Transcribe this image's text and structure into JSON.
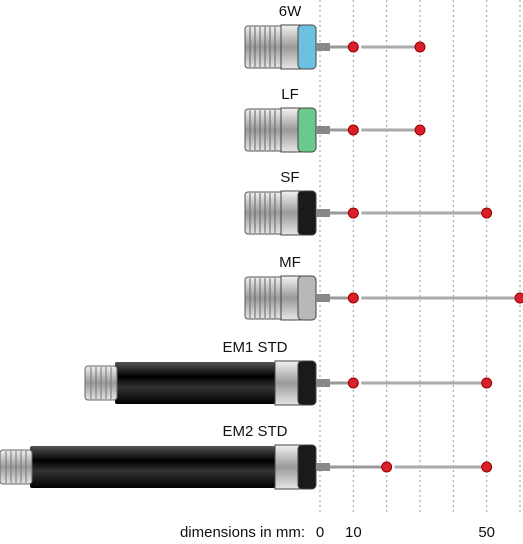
{
  "axis": {
    "label": "dimensions in mm:",
    "lim": [
      0,
      60
    ],
    "ticks": [
      0,
      10,
      50
    ],
    "grid": [
      0,
      10,
      20,
      30,
      40,
      50,
      60
    ]
  },
  "probes": [
    {
      "label": "6W",
      "color": "#6cc0e0",
      "balls": [
        10,
        30
      ]
    },
    {
      "label": "LF",
      "color": "#6cc98e",
      "balls": [
        10,
        30
      ]
    },
    {
      "label": "SF",
      "color": "#1a1a1a",
      "balls": [
        10,
        50
      ]
    },
    {
      "label": "MF",
      "color": "#b8b8b8",
      "balls": [
        10,
        60
      ]
    },
    {
      "label": "EM1 STD",
      "color": "#1a1a1a",
      "balls": [
        10,
        50
      ]
    },
    {
      "label": "EM2 STD",
      "color": "#1a1a1a",
      "balls": [
        20,
        50
      ]
    }
  ]
}
